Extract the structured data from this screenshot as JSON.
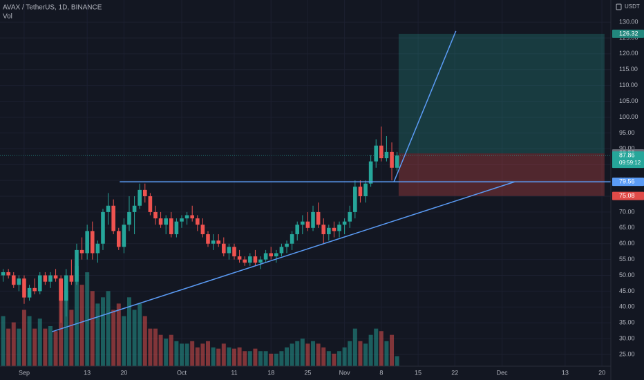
{
  "header": {
    "symbol": "AVAX / TetherUS, 1D, BINANCE",
    "indicator": "Vol",
    "currency": "USDT"
  },
  "chart_data": {
    "type": "candlestick",
    "x": [
      -4,
      -3,
      -2,
      -1,
      0,
      1,
      2,
      3,
      4,
      5,
      6,
      7,
      8,
      9,
      10,
      11,
      12,
      13,
      14,
      15,
      16,
      17,
      18,
      19,
      20,
      21,
      22,
      23,
      24,
      25,
      26,
      27,
      28,
      29,
      30,
      31,
      32,
      33,
      34,
      35,
      36,
      37,
      38,
      39,
      40,
      41,
      42,
      43,
      44,
      45,
      46,
      47,
      48,
      49,
      50,
      51,
      52,
      53,
      54,
      55,
      56,
      57,
      58,
      59,
      60,
      61,
      62,
      63,
      64,
      65,
      66,
      67,
      68,
      69,
      70,
      71
    ],
    "open": [
      50,
      51,
      50,
      47,
      49,
      43,
      46,
      45,
      50,
      48,
      50,
      49,
      42,
      50,
      48,
      58,
      57,
      64,
      57,
      60,
      70,
      72,
      64,
      59,
      66,
      70,
      72,
      77,
      75,
      70,
      68,
      66,
      68,
      63,
      67,
      68,
      69,
      68,
      66,
      63,
      60,
      61,
      60,
      57,
      59,
      56,
      55,
      54,
      56,
      54,
      55,
      57,
      56,
      57,
      59,
      60,
      63,
      66,
      67,
      65,
      70,
      66,
      63,
      65,
      64,
      66,
      67,
      70,
      78,
      75,
      79,
      86,
      91,
      87,
      89,
      84
    ],
    "high": [
      52,
      52,
      51,
      50,
      50,
      47,
      49,
      51,
      51,
      51,
      52,
      50,
      52,
      55,
      60,
      62,
      66,
      67,
      61,
      71,
      76,
      74,
      65,
      68,
      75,
      75,
      79,
      79,
      76,
      72,
      70,
      69,
      70,
      68,
      69,
      70,
      72,
      69,
      68,
      64,
      63,
      63,
      62,
      60,
      60,
      58,
      56,
      57,
      58,
      56,
      58,
      59,
      58,
      60,
      61,
      64,
      67,
      69,
      70,
      72,
      73,
      68,
      66,
      67,
      67,
      68,
      72,
      80,
      80,
      80,
      88,
      93,
      97,
      94,
      92,
      89
    ],
    "low": [
      48,
      49,
      46,
      45,
      41,
      42,
      44,
      44,
      47,
      46,
      48,
      35,
      37,
      47,
      47,
      55,
      55,
      55,
      54,
      58,
      66,
      63,
      58,
      57,
      64,
      63,
      71,
      73,
      69,
      66,
      65,
      63,
      62,
      62,
      65,
      66,
      67,
      64,
      62,
      59,
      58,
      59,
      56,
      55,
      55,
      54,
      53,
      53,
      53,
      52,
      54,
      55,
      54,
      56,
      57,
      58,
      61,
      63,
      64,
      64,
      65,
      60,
      61,
      62,
      62,
      63,
      65,
      68,
      73,
      73,
      78,
      84,
      86,
      86,
      80,
      83
    ],
    "close": [
      51,
      50,
      47,
      49,
      43,
      46,
      45,
      50,
      48,
      50,
      49,
      42,
      50,
      48,
      58,
      57,
      64,
      57,
      60,
      70,
      72,
      64,
      59,
      66,
      70,
      72,
      77,
      75,
      70,
      68,
      66,
      68,
      63,
      67,
      68,
      69,
      68,
      66,
      63,
      60,
      61,
      60,
      57,
      59,
      56,
      55,
      54,
      56,
      54,
      55,
      57,
      56,
      57,
      59,
      60,
      63,
      66,
      67,
      65,
      70,
      66,
      63,
      65,
      64,
      66,
      67,
      70,
      78,
      75,
      79,
      86,
      91,
      87,
      89,
      84,
      87.86
    ],
    "volume": [
      40,
      30,
      35,
      30,
      45,
      40,
      30,
      38,
      30,
      32,
      28,
      70,
      60,
      45,
      80,
      65,
      75,
      60,
      50,
      55,
      60,
      45,
      50,
      40,
      55,
      45,
      50,
      40,
      30,
      30,
      25,
      22,
      25,
      20,
      18,
      18,
      20,
      15,
      18,
      20,
      15,
      14,
      18,
      15,
      14,
      15,
      12,
      12,
      14,
      12,
      12,
      10,
      10,
      12,
      15,
      18,
      20,
      22,
      18,
      20,
      18,
      15,
      12,
      10,
      12,
      15,
      20,
      30,
      20,
      18,
      25,
      30,
      28,
      20,
      25,
      8
    ],
    "xlim": [
      -4.6,
      111.7
    ],
    "ylim": [
      21.3,
      137
    ],
    "xticks": [
      {
        "value": 0,
        "label": "Sep"
      },
      {
        "value": 12,
        "label": "13"
      },
      {
        "value": 19,
        "label": "20"
      },
      {
        "value": 30,
        "label": "Oct"
      },
      {
        "value": 40,
        "label": "11"
      },
      {
        "value": 47,
        "label": "18"
      },
      {
        "value": 54,
        "label": "25"
      },
      {
        "value": 61,
        "label": "Nov"
      },
      {
        "value": 68,
        "label": "8"
      },
      {
        "value": 75,
        "label": "15"
      },
      {
        "value": 82,
        "label": "22"
      },
      {
        "value": 91,
        "label": "Dec"
      },
      {
        "value": 103,
        "label": "13"
      },
      {
        "value": 110,
        "label": "20"
      }
    ],
    "yticks": [
      {
        "value": 25,
        "label": "25.00"
      },
      {
        "value": 30,
        "label": "30.00"
      },
      {
        "value": 35,
        "label": "35.00"
      },
      {
        "value": 40,
        "label": "40.00"
      },
      {
        "value": 45,
        "label": "45.00"
      },
      {
        "value": 50,
        "label": "50.00"
      },
      {
        "value": 55,
        "label": "55.00"
      },
      {
        "value": 60,
        "label": "60.00"
      },
      {
        "value": 65,
        "label": "65.00"
      },
      {
        "value": 70,
        "label": "70.00"
      },
      {
        "value": 75,
        "label": "75.00"
      },
      {
        "value": 80,
        "label": "80.00"
      },
      {
        "value": 85,
        "label": "85.00"
      },
      {
        "value": 90,
        "label": "90.00"
      },
      {
        "value": 95,
        "label": "95.00"
      },
      {
        "value": 100,
        "label": "100.00"
      },
      {
        "value": 105,
        "label": "105.00"
      },
      {
        "value": 110,
        "label": "110.00"
      },
      {
        "value": 115,
        "label": "115.00"
      },
      {
        "value": 120,
        "label": "120.00"
      },
      {
        "value": 125,
        "label": "125.00"
      },
      {
        "value": 130,
        "label": "130.00"
      }
    ],
    "grid": true,
    "up_color": "#26a69a",
    "down_color": "#ef5350",
    "last_price": 87.86,
    "countdown": "09:59:12",
    "drawings": {
      "horizontal_line": {
        "price": 79.56,
        "start": 18.2,
        "color": "#5b9cf6"
      },
      "trend_line": {
        "points": [
          [
            5.3,
            32.2
          ],
          [
            93.4,
            79.56
          ]
        ],
        "color": "#5b9cf6"
      },
      "projection_line": {
        "points": [
          [
            70.4,
            79.56
          ],
          [
            82.2,
            127.2
          ]
        ],
        "color": "#5b9cf6"
      },
      "long_position": {
        "start": 71.3,
        "end": 110.5,
        "entry": 88.53,
        "target": 126.32,
        "stop": 75.08
      }
    }
  }
}
